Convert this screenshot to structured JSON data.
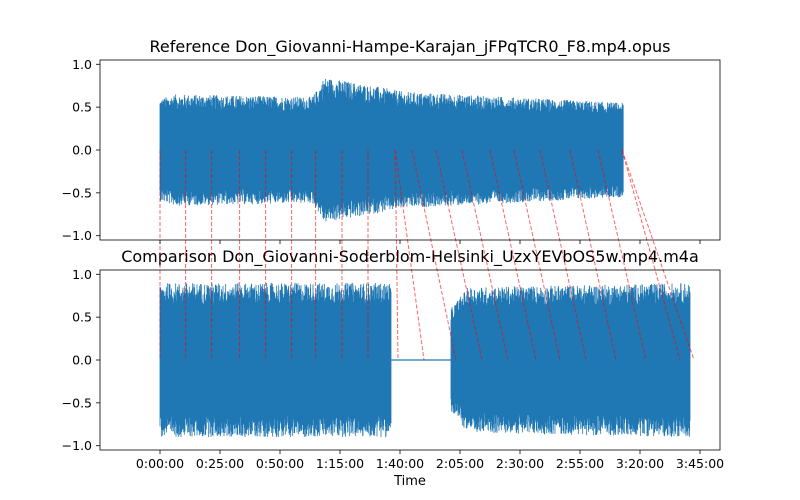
{
  "chart_data": {
    "type": "line",
    "xlabel": "Time",
    "x_ticks": [
      {
        "value": 0,
        "label": "0:00:00"
      },
      {
        "value": 1500,
        "label": "0:25:00"
      },
      {
        "value": 3000,
        "label": "0:50:00"
      },
      {
        "value": 4500,
        "label": "1:15:00"
      },
      {
        "value": 6000,
        "label": "1:40:00"
      },
      {
        "value": 7500,
        "label": "2:05:00"
      },
      {
        "value": 9000,
        "label": "2:30:00"
      },
      {
        "value": 10500,
        "label": "2:55:00"
      },
      {
        "value": 12000,
        "label": "3:20:00"
      },
      {
        "value": 13500,
        "label": "3:45:00"
      }
    ],
    "xlim": [
      -1500,
      14000
    ],
    "colors": {
      "waveform": "#1f77b4",
      "mapping": "#ff0000"
    },
    "panels": [
      {
        "title": "Reference Don_Giovanni-Hampe-Karajan_jFPqTCR0_F8.mp4.opus",
        "ylim": [
          -1.05,
          1.05
        ],
        "y_ticks": [
          {
            "value": 1.0,
            "label": "1.0"
          },
          {
            "value": 0.5,
            "label": "0.5"
          },
          {
            "value": 0.0,
            "label": "0.0"
          },
          {
            "value": -0.5,
            "label": "−0.5"
          },
          {
            "value": -1.0,
            "label": "−1.0"
          }
        ],
        "waveform": {
          "start": 0,
          "end": 11580,
          "envelope": [
            [
              0,
              0.6
            ],
            [
              400,
              0.65
            ],
            [
              3800,
              0.62
            ],
            [
              4000,
              0.75
            ],
            [
              4100,
              0.85
            ],
            [
              5900,
              0.7
            ],
            [
              6100,
              0.68
            ],
            [
              9500,
              0.6
            ],
            [
              11580,
              0.55
            ]
          ]
        }
      },
      {
        "title": "Comparison Don_Giovanni-Soderblom-Helsinki_UzxYEVbOS5w.mp4.m4a",
        "ylim": [
          -1.05,
          1.05
        ],
        "y_ticks": [
          {
            "value": 1.0,
            "label": "1.0"
          },
          {
            "value": 0.5,
            "label": "0.5"
          },
          {
            "value": 0.0,
            "label": "0.0"
          },
          {
            "value": -0.5,
            "label": "−0.5"
          },
          {
            "value": -1.0,
            "label": "−1.0"
          }
        ],
        "waveform": {
          "start": 0,
          "end": 13250,
          "silence": [
            5780,
            7270
          ],
          "envelope": [
            [
              0,
              0.9
            ],
            [
              5780,
              0.9
            ],
            [
              7270,
              0.6
            ],
            [
              7700,
              0.85
            ],
            [
              13250,
              0.9
            ]
          ]
        }
      }
    ],
    "alignment_pairs": [
      [
        0,
        0
      ],
      [
        640,
        640
      ],
      [
        1290,
        1290
      ],
      [
        1990,
        1990
      ],
      [
        2640,
        2640
      ],
      [
        3290,
        3290
      ],
      [
        3890,
        3890
      ],
      [
        4550,
        4550
      ],
      [
        5200,
        5200
      ],
      [
        5880,
        5950
      ],
      [
        5880,
        6600
      ],
      [
        6300,
        7400
      ],
      [
        6900,
        8050
      ],
      [
        7550,
        8700
      ],
      [
        8250,
        9400
      ],
      [
        8850,
        10000
      ],
      [
        9500,
        10650
      ],
      [
        10250,
        11400
      ],
      [
        10950,
        12150
      ],
      [
        11550,
        13000
      ],
      [
        11550,
        13350
      ]
    ]
  }
}
